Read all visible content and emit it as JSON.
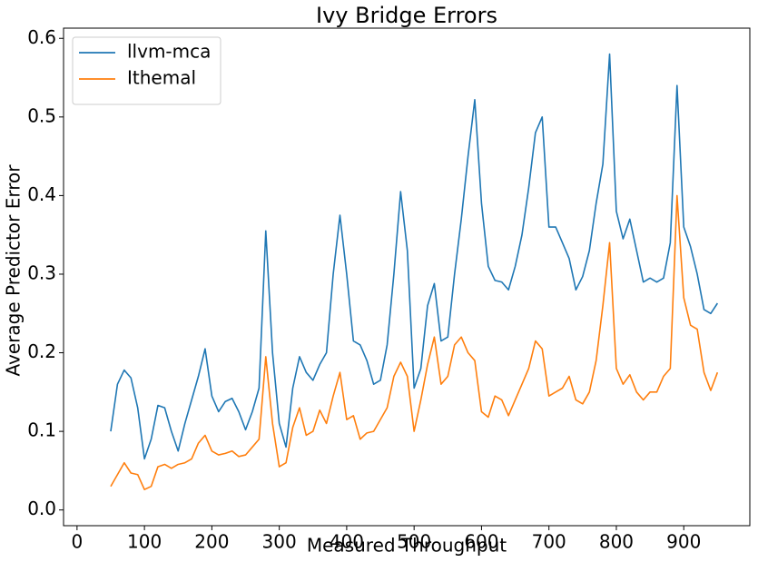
{
  "chart_data": {
    "type": "line",
    "title": "Ivy Bridge Errors",
    "x_label": "Measured Throughput",
    "y_label": "Average Predictor Error",
    "x": [
      50,
      60,
      70,
      80,
      90,
      100,
      110,
      120,
      130,
      140,
      150,
      160,
      170,
      180,
      190,
      200,
      210,
      220,
      230,
      240,
      250,
      260,
      270,
      280,
      290,
      300,
      310,
      320,
      330,
      340,
      350,
      360,
      370,
      380,
      390,
      400,
      410,
      420,
      430,
      440,
      450,
      460,
      470,
      480,
      490,
      500,
      510,
      520,
      530,
      540,
      550,
      560,
      570,
      580,
      590,
      600,
      610,
      620,
      630,
      640,
      650,
      660,
      670,
      680,
      690,
      700,
      710,
      720,
      730,
      740,
      750,
      760,
      770,
      780,
      790,
      800,
      810,
      820,
      830,
      840,
      850,
      860,
      870,
      880,
      890,
      900,
      910,
      920,
      930,
      940,
      950
    ],
    "series": [
      {
        "name": "llvm-mca",
        "color": "#1f77b4",
        "values": [
          0.1,
          0.16,
          0.178,
          0.168,
          0.13,
          0.065,
          0.09,
          0.133,
          0.13,
          0.1,
          0.075,
          0.11,
          0.14,
          0.17,
          0.205,
          0.145,
          0.125,
          0.138,
          0.142,
          0.125,
          0.102,
          0.125,
          0.155,
          0.355,
          0.2,
          0.11,
          0.08,
          0.155,
          0.195,
          0.175,
          0.165,
          0.185,
          0.2,
          0.3,
          0.375,
          0.3,
          0.215,
          0.21,
          0.19,
          0.16,
          0.165,
          0.21,
          0.3,
          0.405,
          0.33,
          0.155,
          0.18,
          0.26,
          0.288,
          0.215,
          0.22,
          0.3,
          0.37,
          0.45,
          0.522,
          0.39,
          0.31,
          0.292,
          0.29,
          0.28,
          0.31,
          0.35,
          0.41,
          0.48,
          0.5,
          0.36,
          0.36,
          0.34,
          0.32,
          0.28,
          0.297,
          0.33,
          0.39,
          0.44,
          0.58,
          0.38,
          0.345,
          0.37,
          0.33,
          0.29,
          0.295,
          0.29,
          0.295,
          0.34,
          0.54,
          0.36,
          0.335,
          0.3,
          0.255,
          0.25,
          0.263
        ]
      },
      {
        "name": "Ithemal",
        "color": "#ff7f0e",
        "values": [
          0.03,
          0.045,
          0.06,
          0.047,
          0.045,
          0.026,
          0.03,
          0.055,
          0.058,
          0.053,
          0.058,
          0.06,
          0.065,
          0.085,
          0.095,
          0.075,
          0.07,
          0.072,
          0.075,
          0.068,
          0.07,
          0.08,
          0.09,
          0.195,
          0.11,
          0.055,
          0.06,
          0.105,
          0.13,
          0.095,
          0.1,
          0.127,
          0.11,
          0.145,
          0.175,
          0.115,
          0.12,
          0.09,
          0.098,
          0.1,
          0.115,
          0.13,
          0.17,
          0.188,
          0.17,
          0.1,
          0.14,
          0.185,
          0.22,
          0.16,
          0.17,
          0.21,
          0.22,
          0.2,
          0.19,
          0.125,
          0.118,
          0.145,
          0.14,
          0.12,
          0.14,
          0.16,
          0.18,
          0.215,
          0.205,
          0.145,
          0.15,
          0.155,
          0.17,
          0.14,
          0.135,
          0.15,
          0.19,
          0.26,
          0.34,
          0.18,
          0.16,
          0.172,
          0.15,
          0.14,
          0.15,
          0.15,
          0.17,
          0.18,
          0.4,
          0.27,
          0.235,
          0.23,
          0.175,
          0.152,
          0.175
        ]
      }
    ],
    "xlim": [
      -20,
      998
    ],
    "ylim": [
      -0.02,
      0.613
    ],
    "xticks": [
      0,
      100,
      200,
      300,
      400,
      500,
      600,
      700,
      800,
      900
    ],
    "yticks": [
      {
        "value": 0,
        "label": "0.0"
      },
      0.1,
      0.2,
      0.3,
      0.4,
      0.5,
      0.6
    ],
    "legend": "upper left"
  }
}
